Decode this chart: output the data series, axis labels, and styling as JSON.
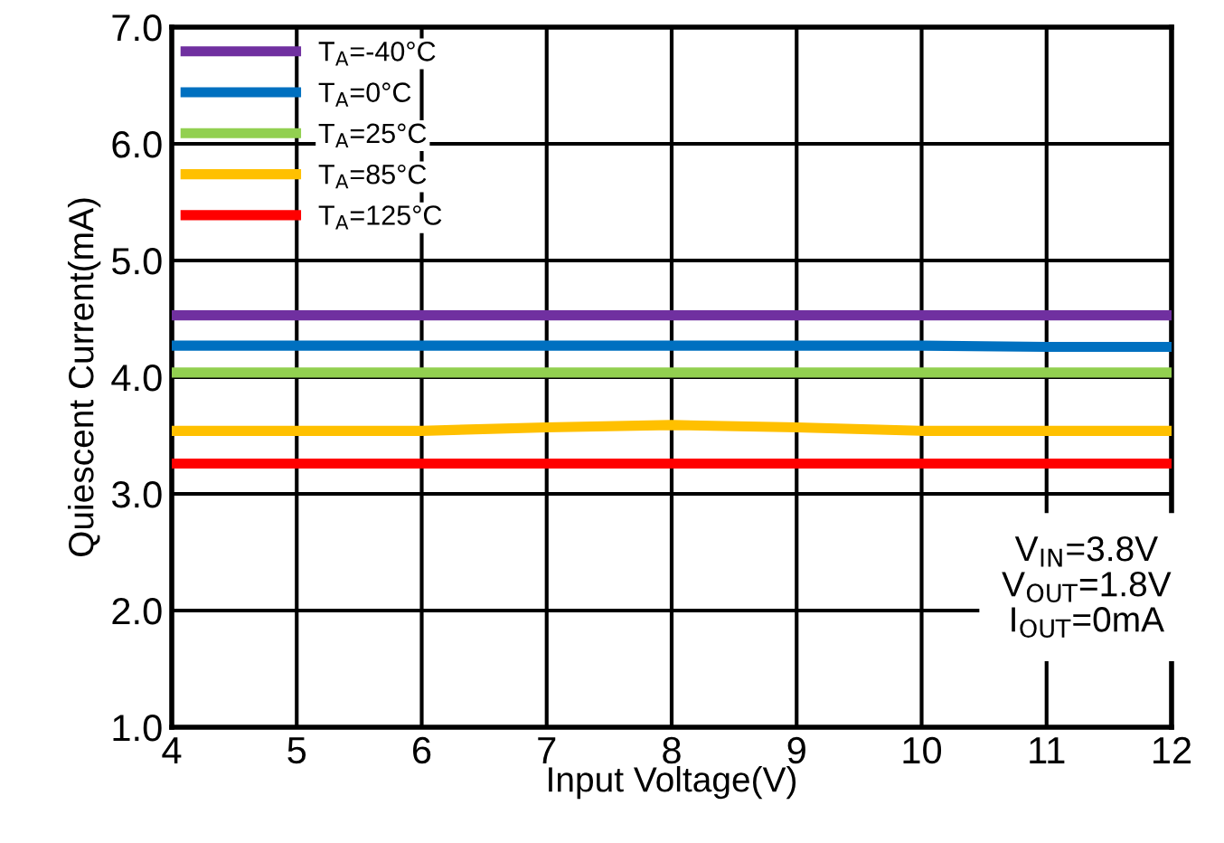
{
  "chart_data": {
    "type": "line",
    "xlabel": "Input Voltage(V)",
    "ylabel": "Quiescent Current(mA)",
    "x": [
      4,
      5,
      6,
      7,
      8,
      9,
      10,
      11,
      12
    ],
    "series": [
      {
        "name": "T$_{A}$=-40°C",
        "color": "#7030a0",
        "values": [
          4.53,
          4.53,
          4.53,
          4.53,
          4.53,
          4.53,
          4.53,
          4.53,
          4.53
        ]
      },
      {
        "name": "T$_{A}$=0°C",
        "color": "#0070c0",
        "values": [
          4.27,
          4.27,
          4.27,
          4.27,
          4.27,
          4.27,
          4.27,
          4.26,
          4.26
        ]
      },
      {
        "name": "T$_{A}$=25°C",
        "color": "#92d050",
        "values": [
          4.04,
          4.04,
          4.04,
          4.04,
          4.04,
          4.04,
          4.04,
          4.04,
          4.04
        ]
      },
      {
        "name": "T$_{A}$=85°C",
        "color": "#ffc000",
        "values": [
          3.54,
          3.54,
          3.54,
          3.57,
          3.59,
          3.57,
          3.54,
          3.54,
          3.54
        ]
      },
      {
        "name": "T$_{A}$=125°C",
        "color": "#ff0000",
        "values": [
          3.26,
          3.26,
          3.26,
          3.26,
          3.26,
          3.26,
          3.26,
          3.26,
          3.26
        ]
      }
    ],
    "xlim": [
      4,
      12
    ],
    "xticks": [
      4,
      5,
      6,
      7,
      8,
      9,
      10,
      11,
      12
    ],
    "ylim": [
      1.0,
      7.0
    ],
    "yticks": [
      {
        "value": 1,
        "label": "1.0"
      },
      {
        "value": 2,
        "label": "2.0"
      },
      {
        "value": 3,
        "label": "3.0"
      },
      {
        "value": 4,
        "label": "4.0"
      },
      {
        "value": 5,
        "label": "5.0"
      },
      {
        "value": 6,
        "label": "6.0"
      },
      {
        "value": 7,
        "label": "7.0"
      }
    ],
    "grid": true,
    "legend": "top left",
    "marker": "none",
    "line_style": "solid",
    "annotations": [
      "V$_{IN}$=3.8V\nV$_{OUT}$=1.8V\nI$_{OUT}$=0mA"
    ]
  }
}
